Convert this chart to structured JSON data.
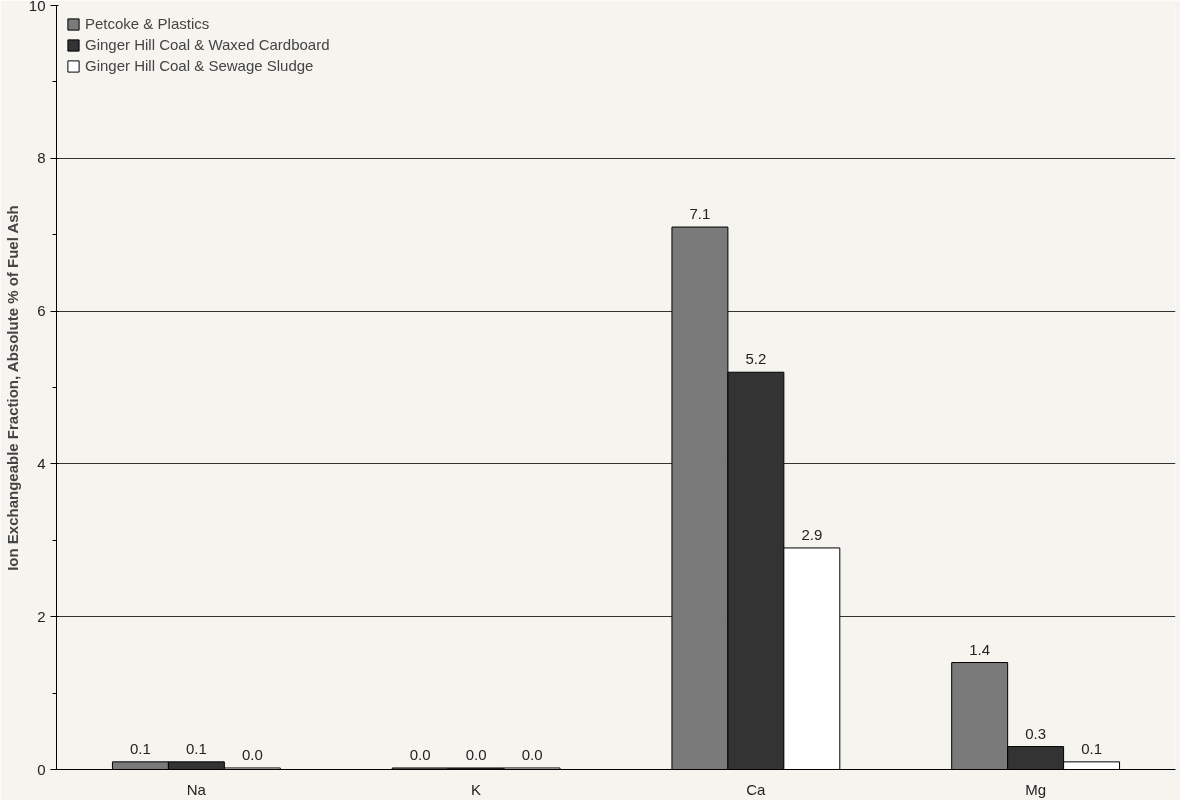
{
  "chart_data": {
    "type": "bar",
    "ylabel": "Ion Exchangeable Fraction, Absolute % of Fuel Ash",
    "categories": [
      "Na",
      "K",
      "Ca",
      "Mg"
    ],
    "series": [
      {
        "name": "Petcoke & Plastics",
        "color": "#7a7a7a",
        "values": [
          0.1,
          0.02,
          7.1,
          1.4
        ],
        "value_labels": [
          "0.1",
          "0.0",
          "7.1",
          "1.4"
        ]
      },
      {
        "name": "Ginger Hill Coal & Waxed Cardboard",
        "color": "#333333",
        "values": [
          0.1,
          0.02,
          5.2,
          0.3
        ],
        "value_labels": [
          "0.1",
          "0.0",
          "5.2",
          "0.3"
        ]
      },
      {
        "name": "Ginger Hill Coal & Sewage Sludge",
        "color": "#ffffff",
        "values": [
          0.02,
          0.02,
          2.9,
          0.1
        ],
        "value_labels": [
          "0.0",
          "0.0",
          "2.9",
          "0.1"
        ]
      }
    ],
    "ylim": [
      0,
      10
    ],
    "yticks": [
      0,
      2,
      4,
      6,
      8,
      10
    ],
    "grid": "y",
    "legend": "top left"
  }
}
